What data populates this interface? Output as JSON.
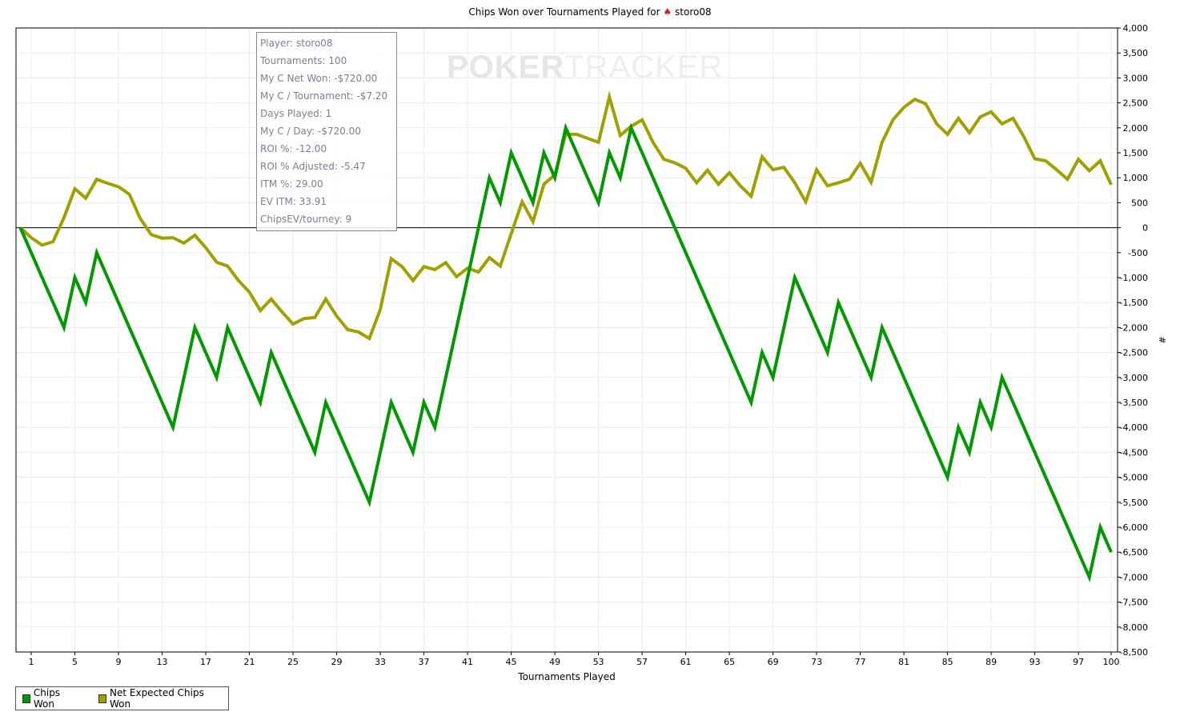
{
  "title": {
    "prefix": "Chips Won over Tournaments Played for",
    "player": "storo08"
  },
  "watermark": {
    "part1": "POKER",
    "part2": "TRACKER"
  },
  "tooltip": [
    "Player: storo08",
    "Tournaments: 100",
    "My C Net Won: -$720.00",
    "My C / Tournament: -$7.20",
    "Days Played: 1",
    "My C / Day: -$720.00",
    "ROI %: -12.00",
    "ROI % Adjusted: -5.47",
    "ITM %: 29.00",
    "EV ITM: 33.91",
    "ChipsEV/tourney: 9"
  ],
  "chart_data": {
    "type": "line",
    "title": "Chips Won over Tournaments Played for storo08",
    "xlabel": "Tournaments Played",
    "ylabel": "#",
    "xlim": [
      0,
      100
    ],
    "ylim": [
      -8500,
      4000
    ],
    "grid": true,
    "legend_position": "bottom-left",
    "xticks": [
      1,
      5,
      9,
      13,
      17,
      21,
      25,
      29,
      33,
      37,
      41,
      45,
      49,
      53,
      57,
      61,
      65,
      69,
      73,
      77,
      81,
      85,
      89,
      93,
      97,
      100
    ],
    "yticks": [
      4000,
      3500,
      3000,
      2500,
      2000,
      1500,
      1000,
      500,
      0,
      -500,
      -1000,
      -1500,
      -2000,
      -2500,
      -3000,
      -3500,
      -4000,
      -4500,
      -5000,
      -5500,
      -6000,
      -6500,
      -7000,
      -7500,
      -8000,
      -8500
    ],
    "ytick_labels": [
      "4,000",
      "3,500",
      "3,000",
      "2,500",
      "2,000",
      "1,500",
      "1,000",
      "500",
      "0",
      "-500",
      "-1,000",
      "-1,500",
      "-2,000",
      "-2,500",
      "-3,000",
      "-3,500",
      "-4,000",
      "-4,500",
      "-5,000",
      "-5,500",
      "-6,000",
      "-6,500",
      "-7,000",
      "-7,500",
      "-8,000",
      "-8,500"
    ],
    "series": [
      {
        "name": "Chips Won",
        "color": "#009900",
        "values": [
          0,
          -500,
          -1000,
          -1500,
          -2000,
          -1000,
          -1500,
          -500,
          -1000,
          -1500,
          -2000,
          -2500,
          -3000,
          -3500,
          -4000,
          -3000,
          -2000,
          -2500,
          -3000,
          -2000,
          -2500,
          -3000,
          -3500,
          -2500,
          -3000,
          -3500,
          -4000,
          -4500,
          -3500,
          -4000,
          -4500,
          -5000,
          -5500,
          -4500,
          -3500,
          -4000,
          -4500,
          -3500,
          -4000,
          -3000,
          -2000,
          -1000,
          0,
          1000,
          500,
          1500,
          1000,
          500,
          1500,
          1000,
          2000,
          1500,
          1000,
          500,
          1500,
          1000,
          2000,
          1500,
          1000,
          500,
          0,
          -500,
          -1000,
          -1500,
          -2000,
          -2500,
          -3000,
          -3500,
          -2500,
          -3000,
          -2000,
          -1000,
          -1500,
          -2000,
          -2500,
          -1500,
          -2000,
          -2500,
          -3000,
          -2000,
          -2500,
          -3000,
          -3500,
          -4000,
          -4500,
          -5000,
          -4000,
          -4500,
          -3500,
          -4000,
          -3000,
          -3500,
          -4000,
          -4500,
          -5000,
          -5500,
          -6000,
          -6500,
          -7000,
          -6000,
          -6500
        ]
      },
      {
        "name": "Net Expected Chips Won",
        "color": "#a0a000",
        "values": [
          0,
          -200,
          -350,
          -280,
          200,
          780,
          590,
          970,
          890,
          820,
          670,
          180,
          -140,
          -210,
          -200,
          -310,
          -150,
          -400,
          -690,
          -770,
          -1060,
          -1290,
          -1660,
          -1430,
          -1690,
          -1930,
          -1820,
          -1800,
          -1430,
          -1770,
          -2040,
          -2090,
          -2220,
          -1640,
          -620,
          -780,
          -1060,
          -780,
          -840,
          -700,
          -980,
          -810,
          -890,
          -600,
          -770,
          -120,
          520,
          120,
          870,
          1060,
          1870,
          1870,
          1790,
          1710,
          2620,
          1850,
          2030,
          2160,
          1710,
          1370,
          1300,
          1190,
          900,
          1150,
          870,
          1100,
          840,
          630,
          1420,
          1160,
          1210,
          900,
          520,
          1160,
          840,
          900,
          970,
          1290,
          910,
          1710,
          2160,
          2410,
          2570,
          2480,
          2080,
          1870,
          2190,
          1900,
          2220,
          2320,
          2080,
          2190,
          1820,
          1380,
          1340,
          1160,
          970,
          1370,
          1140,
          1340,
          860
        ]
      }
    ]
  }
}
